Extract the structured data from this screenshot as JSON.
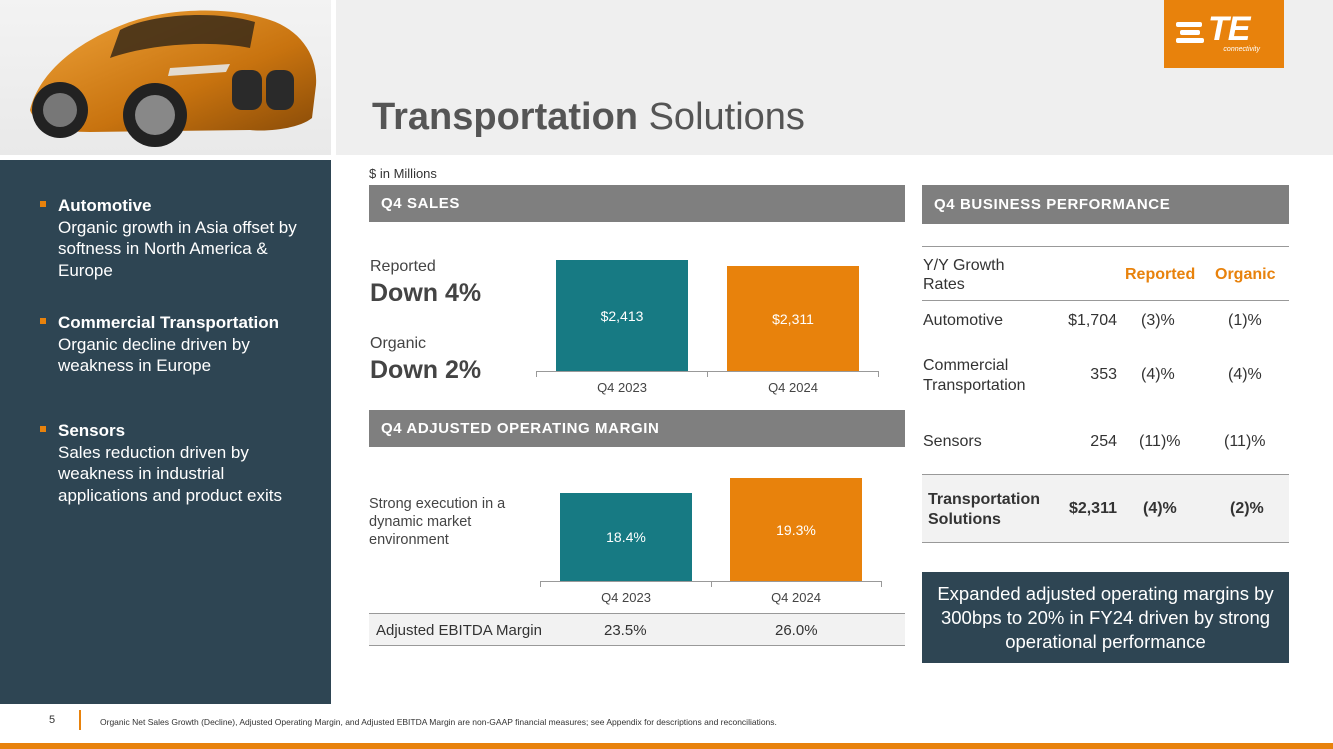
{
  "header": {
    "title_bold": "Transportation",
    "title_rest": " Solutions",
    "logo_text": "TE",
    "logo_sub": "connectivity"
  },
  "sidebar": {
    "items": [
      {
        "heading": "Automotive",
        "text": "Organic growth in Asia offset by softness in North America & Europe"
      },
      {
        "heading": "Commercial Transportation",
        "text": "Organic decline driven by weakness in Europe"
      },
      {
        "heading": "Sensors",
        "text": "Sales reduction driven by weakness in industrial applications and product exits"
      }
    ]
  },
  "units": "$ in Millions",
  "sales": {
    "header": "Q4 SALES",
    "reported_label": "Reported",
    "reported_value": "Down 4%",
    "organic_label": "Organic",
    "organic_value": "Down 2%"
  },
  "margin": {
    "header": "Q4 ADJUSTED OPERATING MARGIN",
    "note": "Strong execution in a dynamic market environment",
    "ebitda_label": "Adjusted EBITDA Margin",
    "ebitda_values": [
      "23.5%",
      "26.0%"
    ]
  },
  "chart_data": [
    {
      "type": "bar",
      "categories": [
        "Q4 2023",
        "Q4 2024"
      ],
      "values": [
        2413,
        2311
      ],
      "data_labels": [
        "$2,413",
        "$2,311"
      ],
      "colors": [
        "#177a83",
        "#e8820c"
      ]
    },
    {
      "type": "bar",
      "categories": [
        "Q4 2023",
        "Q4 2024"
      ],
      "values": [
        18.4,
        19.3
      ],
      "data_labels": [
        "18.4%",
        "19.3%"
      ],
      "colors": [
        "#177a83",
        "#e8820c"
      ]
    }
  ],
  "performance": {
    "header": "Q4 BUSINESS PERFORMANCE",
    "col_label": "Y/Y Growth Rates",
    "col_reported": "Reported",
    "col_organic": "Organic",
    "rows": [
      {
        "name": "Automotive",
        "sales": "$1,704",
        "reported": "(3)%",
        "organic": "(1)%"
      },
      {
        "name": "Commercial Transportation",
        "sales": "353",
        "reported": "(4)%",
        "organic": "(4)%"
      },
      {
        "name": "Sensors",
        "sales": "254",
        "reported": "(11)%",
        "organic": "(11)%"
      }
    ],
    "total": {
      "name": "Transportation Solutions",
      "sales": "$2,311",
      "reported": "(4)%",
      "organic": "(2)%"
    },
    "accent": "#e8820c"
  },
  "callout": "Expanded adjusted operating margins by 300bps to 20% in FY24 driven by strong operational performance",
  "footer": {
    "page": "5",
    "note": "Organic Net Sales Growth (Decline), Adjusted Operating Margin, and Adjusted EBITDA Margin are non-GAAP financial measures; see Appendix for descriptions and reconciliations."
  },
  "colors": {
    "navy": "#2e4553",
    "orange": "#e8820c",
    "teal": "#177a83",
    "gray_header": "#7f7f7f"
  }
}
